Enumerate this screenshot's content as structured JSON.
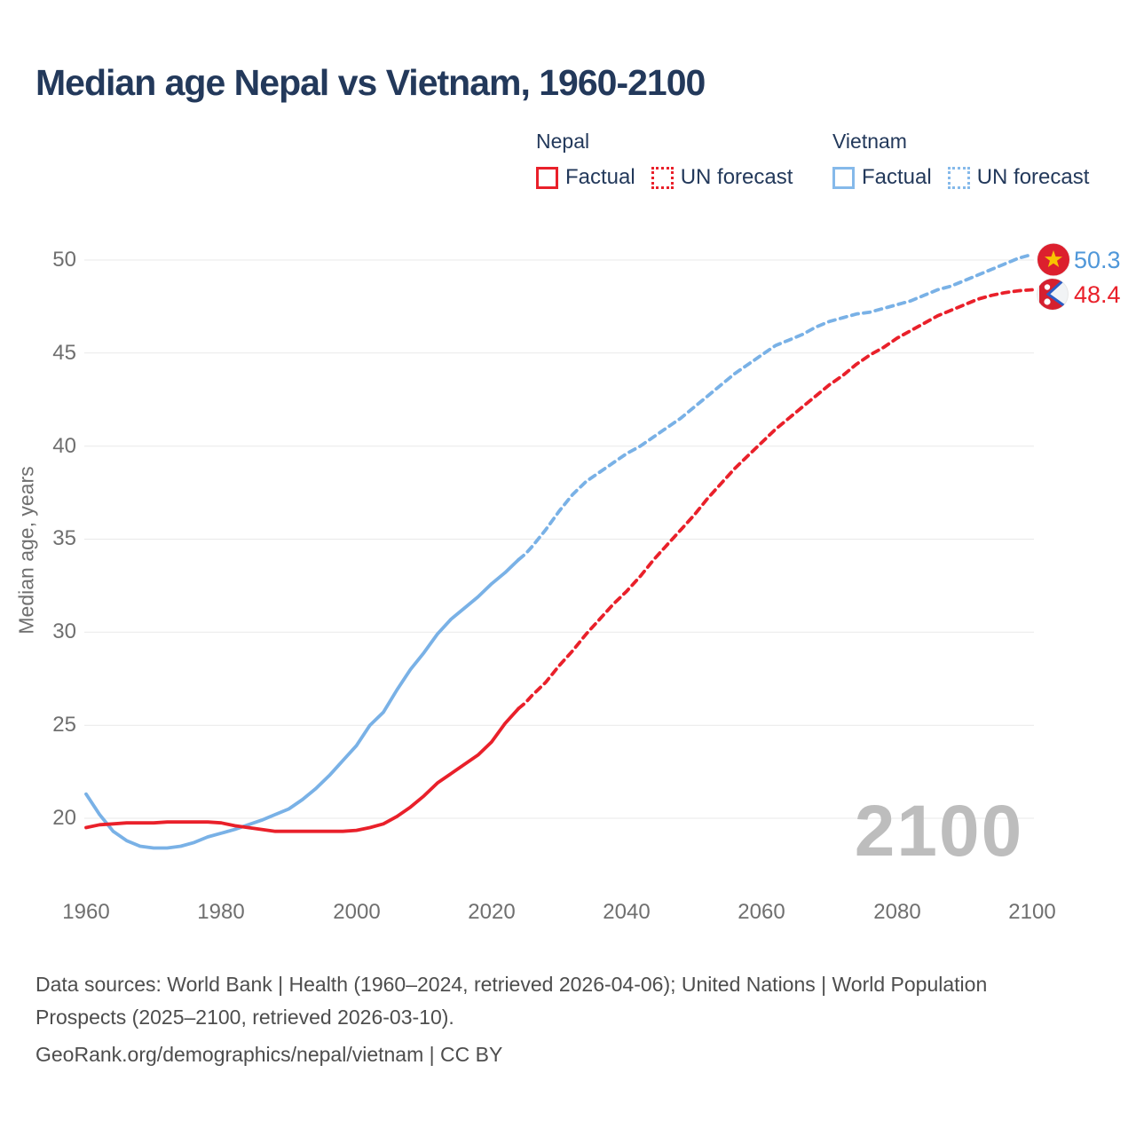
{
  "title": "Median age Nepal vs Vietnam, 1960-2100",
  "legend": {
    "nepal": {
      "label": "Nepal",
      "factual": "Factual",
      "forecast": "UN forecast"
    },
    "vietnam": {
      "label": "Vietnam",
      "factual": "Factual",
      "forecast": "UN forecast"
    }
  },
  "colors": {
    "nepal_line": "#e9202a",
    "vietnam_line": "#79b1e6",
    "title_text": "#23395b",
    "axis_text": "#6f6f6f",
    "grid": "#e9e9e9",
    "watermark": "#bdbdbd",
    "footer_text": "#4d4d4d",
    "vietnam_flag_red": "#dc1f2e",
    "vietnam_flag_star": "#f8c300",
    "nepal_flag_crimson": "#d5202f",
    "nepal_flag_blue": "#2b5cc4"
  },
  "watermark": "2100",
  "chart_data": {
    "type": "line",
    "title": "Median age Nepal vs Vietnam, 1960-2100",
    "xlabel": "",
    "ylabel": "Median age, years",
    "xticks": [
      "1960",
      "1980",
      "2000",
      "2020",
      "2040",
      "2060",
      "2080",
      "2100"
    ],
    "yticks": [
      20,
      25,
      30,
      35,
      40,
      45,
      50
    ],
    "xlim": [
      1960,
      2100
    ],
    "ylim": [
      18,
      51.5
    ],
    "grid": "horizontal",
    "grid_color": "#e9e9e9",
    "legend_position": "top-right",
    "series": [
      {
        "name": "Vietnam factual",
        "style": "solid",
        "color": "#79b1e6",
        "points": [
          [
            1960,
            21.3
          ],
          [
            1962,
            20.2
          ],
          [
            1964,
            19.3
          ],
          [
            1966,
            18.8
          ],
          [
            1968,
            18.5
          ],
          [
            1970,
            18.4
          ],
          [
            1972,
            18.4
          ],
          [
            1974,
            18.5
          ],
          [
            1976,
            18.7
          ],
          [
            1978,
            19.0
          ],
          [
            1980,
            19.2
          ],
          [
            1982,
            19.4
          ],
          [
            1984,
            19.65
          ],
          [
            1986,
            19.9
          ],
          [
            1988,
            20.2
          ],
          [
            1990,
            20.5
          ],
          [
            1992,
            21.0
          ],
          [
            1994,
            21.6
          ],
          [
            1996,
            22.3
          ],
          [
            1998,
            23.1
          ],
          [
            2000,
            23.9
          ],
          [
            2002,
            25.0
          ],
          [
            2004,
            25.7
          ],
          [
            2006,
            26.9
          ],
          [
            2008,
            28.0
          ],
          [
            2010,
            28.9
          ],
          [
            2012,
            29.9
          ],
          [
            2014,
            30.7
          ],
          [
            2016,
            31.3
          ],
          [
            2018,
            31.9
          ],
          [
            2020,
            32.6
          ],
          [
            2022,
            33.2
          ],
          [
            2024,
            33.9
          ]
        ]
      },
      {
        "name": "Vietnam UN forecast",
        "style": "dashed",
        "color": "#79b1e6",
        "points": [
          [
            2024,
            33.9
          ],
          [
            2025,
            34.2
          ],
          [
            2026,
            34.6
          ],
          [
            2028,
            35.5
          ],
          [
            2030,
            36.5
          ],
          [
            2032,
            37.4
          ],
          [
            2034,
            38.1
          ],
          [
            2036,
            38.6
          ],
          [
            2038,
            39.1
          ],
          [
            2040,
            39.6
          ],
          [
            2042,
            40.0
          ],
          [
            2044,
            40.5
          ],
          [
            2046,
            41.0
          ],
          [
            2048,
            41.5
          ],
          [
            2050,
            42.1
          ],
          [
            2052,
            42.7
          ],
          [
            2054,
            43.3
          ],
          [
            2056,
            43.9
          ],
          [
            2058,
            44.4
          ],
          [
            2060,
            44.9
          ],
          [
            2062,
            45.4
          ],
          [
            2064,
            45.7
          ],
          [
            2066,
            46.0
          ],
          [
            2068,
            46.4
          ],
          [
            2070,
            46.7
          ],
          [
            2072,
            46.9
          ],
          [
            2074,
            47.1
          ],
          [
            2076,
            47.2
          ],
          [
            2078,
            47.4
          ],
          [
            2080,
            47.6
          ],
          [
            2082,
            47.8
          ],
          [
            2084,
            48.1
          ],
          [
            2086,
            48.4
          ],
          [
            2088,
            48.6
          ],
          [
            2090,
            48.9
          ],
          [
            2092,
            49.2
          ],
          [
            2094,
            49.5
          ],
          [
            2096,
            49.8
          ],
          [
            2098,
            50.1
          ],
          [
            2100,
            50.3
          ]
        ]
      },
      {
        "name": "Nepal factual",
        "style": "solid",
        "color": "#e9202a",
        "points": [
          [
            1960,
            19.5
          ],
          [
            1962,
            19.65
          ],
          [
            1964,
            19.7
          ],
          [
            1966,
            19.75
          ],
          [
            1968,
            19.75
          ],
          [
            1970,
            19.75
          ],
          [
            1972,
            19.8
          ],
          [
            1974,
            19.8
          ],
          [
            1976,
            19.8
          ],
          [
            1978,
            19.8
          ],
          [
            1980,
            19.75
          ],
          [
            1982,
            19.6
          ],
          [
            1984,
            19.5
          ],
          [
            1986,
            19.4
          ],
          [
            1988,
            19.3
          ],
          [
            1990,
            19.3
          ],
          [
            1992,
            19.3
          ],
          [
            1994,
            19.3
          ],
          [
            1996,
            19.3
          ],
          [
            1998,
            19.3
          ],
          [
            2000,
            19.35
          ],
          [
            2002,
            19.5
          ],
          [
            2004,
            19.7
          ],
          [
            2006,
            20.1
          ],
          [
            2008,
            20.6
          ],
          [
            2010,
            21.2
          ],
          [
            2012,
            21.9
          ],
          [
            2014,
            22.4
          ],
          [
            2016,
            22.9
          ],
          [
            2018,
            23.4
          ],
          [
            2020,
            24.1
          ],
          [
            2022,
            25.1
          ],
          [
            2024,
            25.9
          ]
        ]
      },
      {
        "name": "Nepal UN forecast",
        "style": "dashed",
        "color": "#e9202a",
        "points": [
          [
            2024,
            25.9
          ],
          [
            2025,
            26.2
          ],
          [
            2026,
            26.6
          ],
          [
            2028,
            27.3
          ],
          [
            2030,
            28.2
          ],
          [
            2032,
            29.0
          ],
          [
            2034,
            29.9
          ],
          [
            2036,
            30.7
          ],
          [
            2038,
            31.5
          ],
          [
            2040,
            32.2
          ],
          [
            2042,
            33.0
          ],
          [
            2044,
            33.9
          ],
          [
            2046,
            34.7
          ],
          [
            2048,
            35.5
          ],
          [
            2050,
            36.3
          ],
          [
            2052,
            37.2
          ],
          [
            2054,
            38.0
          ],
          [
            2056,
            38.8
          ],
          [
            2058,
            39.5
          ],
          [
            2060,
            40.2
          ],
          [
            2062,
            40.9
          ],
          [
            2064,
            41.5
          ],
          [
            2066,
            42.1
          ],
          [
            2068,
            42.7
          ],
          [
            2070,
            43.3
          ],
          [
            2072,
            43.8
          ],
          [
            2074,
            44.4
          ],
          [
            2076,
            44.9
          ],
          [
            2078,
            45.3
          ],
          [
            2080,
            45.8
          ],
          [
            2082,
            46.2
          ],
          [
            2084,
            46.6
          ],
          [
            2086,
            47.0
          ],
          [
            2088,
            47.3
          ],
          [
            2090,
            47.6
          ],
          [
            2092,
            47.9
          ],
          [
            2094,
            48.1
          ],
          [
            2096,
            48.25
          ],
          [
            2098,
            48.35
          ],
          [
            2100,
            48.4
          ]
        ]
      }
    ],
    "end_labels": [
      {
        "series": "Vietnam",
        "value": "50.3"
      },
      {
        "series": "Nepal",
        "value": "48.4"
      }
    ]
  },
  "footer": {
    "sources": "Data sources: World Bank | Health (1960–2024, retrieved 2026-04-06); United Nations | World Population Prospects (2025–2100, retrieved 2026-03-10).",
    "attribution": "GeoRank.org/demographics/nepal/vietnam | CC BY"
  }
}
